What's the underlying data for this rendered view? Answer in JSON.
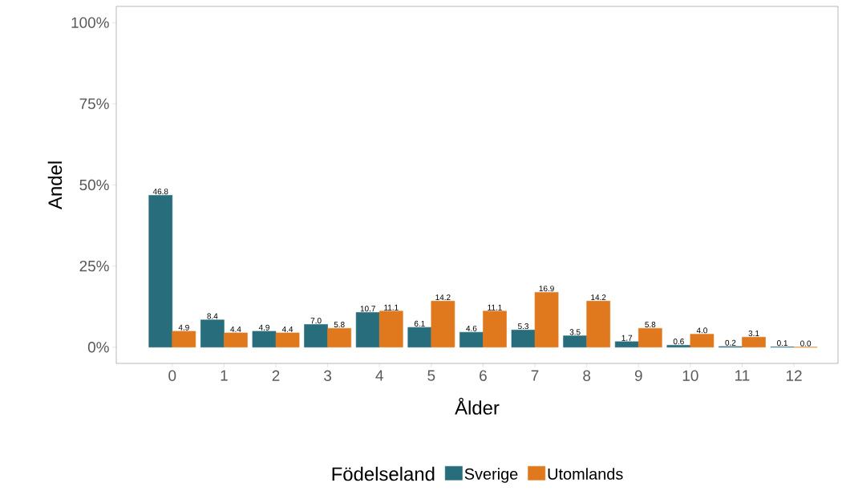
{
  "chart_data": {
    "type": "bar",
    "xlabel": "Ålder",
    "ylabel": "Andel",
    "legend_title": "Födelseland",
    "legend": "bottom",
    "categories": [
      "0",
      "1",
      "2",
      "3",
      "4",
      "5",
      "6",
      "7",
      "8",
      "9",
      "10",
      "11",
      "12"
    ],
    "series": [
      {
        "name": "Sverige",
        "color": "#276d7b",
        "values": [
          46.8,
          8.4,
          4.9,
          7.0,
          10.7,
          6.1,
          4.6,
          5.3,
          3.5,
          1.7,
          0.6,
          0.2,
          0.1
        ],
        "value_labels": [
          "46.8",
          "8.4",
          "4.9",
          "7.0",
          "10.7",
          "6.1",
          "4.6",
          "5.3",
          "3.5",
          "1.7",
          "0.6",
          "0.2",
          "0.1"
        ]
      },
      {
        "name": "Utomlands",
        "color": "#e0781e",
        "values": [
          4.9,
          4.4,
          4.4,
          5.8,
          11.1,
          14.2,
          11.1,
          16.9,
          14.2,
          5.8,
          4.0,
          3.1,
          0.0
        ],
        "value_labels": [
          "4.9",
          "4.4",
          "4.4",
          "5.8",
          "11.1",
          "14.2",
          "11.1",
          "16.9",
          "14.2",
          "5.8",
          "4.0",
          "3.1",
          "0.0"
        ]
      }
    ],
    "ylim": [
      -5,
      105
    ],
    "yticks": [
      {
        "value": 0,
        "label": "0%"
      },
      {
        "value": 25,
        "label": "25%"
      },
      {
        "value": 50,
        "label": "50%"
      },
      {
        "value": 75,
        "label": "75%"
      },
      {
        "value": 100,
        "label": "100%"
      }
    ],
    "grid": false
  }
}
